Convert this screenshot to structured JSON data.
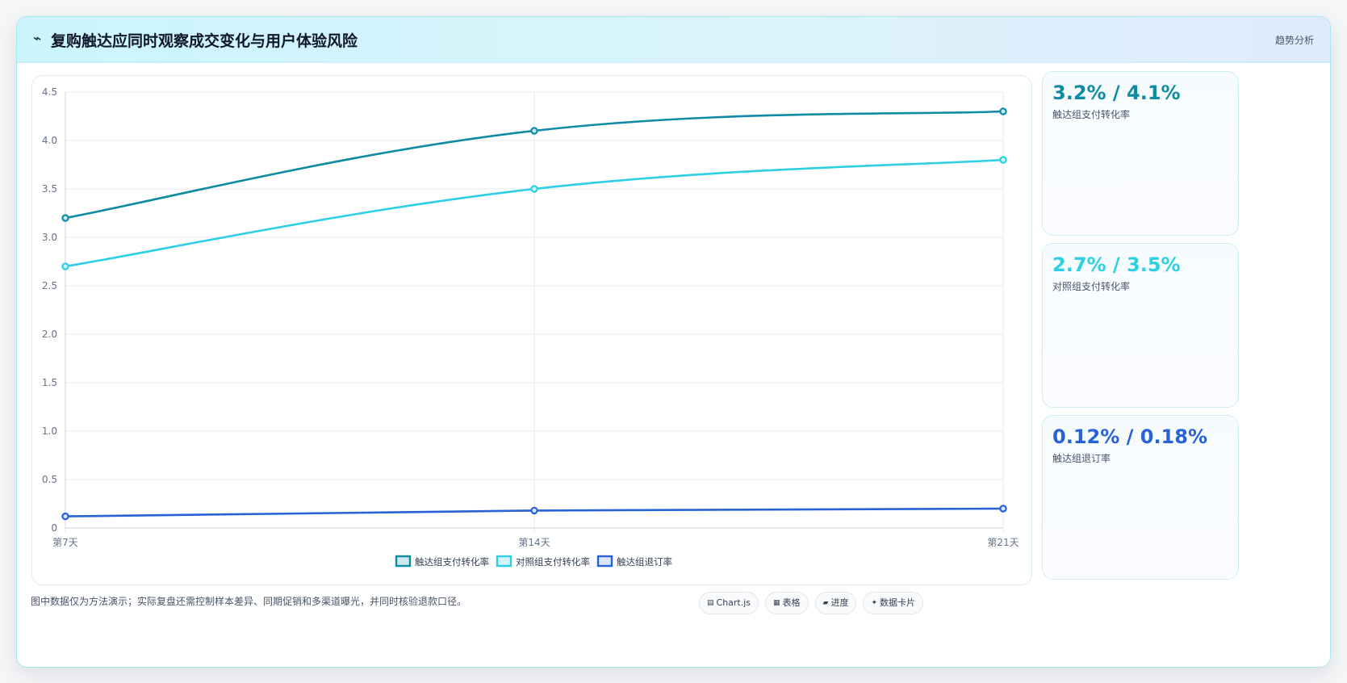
{
  "header": {
    "icon": "line-chart-icon",
    "icon_glyph": "⌁",
    "title": "复购触达应同时观察成交变化与用户体验风险",
    "tag": "趋势分析"
  },
  "kpis": [
    {
      "value": "3.2% / 4.1%",
      "label": "触达组支付转化率",
      "color": "#0e8ba3"
    },
    {
      "value": "2.7% / 3.5%",
      "label": "对照组支付转化率",
      "color": "#2ccfe3"
    },
    {
      "value": "0.12% / 0.18%",
      "label": "触达组退订率",
      "color": "#2862d6"
    }
  ],
  "footer": {
    "note": "图中数据仅为方法演示；实际复盘还需控制样本差异、同期促销和多渠道曝光，并同时核验退款口径。",
    "chips": [
      {
        "icon": "chart-icon",
        "glyph": "▤",
        "label": "Chart.js"
      },
      {
        "icon": "table-icon",
        "glyph": "▦",
        "label": "表格"
      },
      {
        "icon": "progress-icon",
        "glyph": "▰",
        "label": "进度"
      },
      {
        "icon": "data-card-icon",
        "glyph": "✦",
        "label": "数据卡片"
      }
    ]
  },
  "chart_data": {
    "type": "line",
    "title": "",
    "xlabel": "",
    "ylabel": "",
    "categories": [
      "第7天",
      "第14天",
      "第21天"
    ],
    "ylim": [
      0,
      4.5
    ],
    "yticks": [
      "0",
      "0.5",
      "1.0",
      "1.5",
      "2.0",
      "2.5",
      "3.0",
      "3.5",
      "4.0",
      "4.5"
    ],
    "grid": true,
    "legend_position": "bottom",
    "series": [
      {
        "name": "触达组支付转化率",
        "values": [
          3.2,
          4.1,
          4.3
        ],
        "color": "#0e8ba3",
        "fill": "#cde8ee"
      },
      {
        "name": "对照组支付转化率",
        "values": [
          2.7,
          3.5,
          3.8
        ],
        "color": "#2ccfe3",
        "fill": "#d3f5fa"
      },
      {
        "name": "触达组退订率",
        "values": [
          0.12,
          0.18,
          0.2
        ],
        "color": "#2862d6",
        "fill": "#dbe6fb"
      }
    ]
  }
}
